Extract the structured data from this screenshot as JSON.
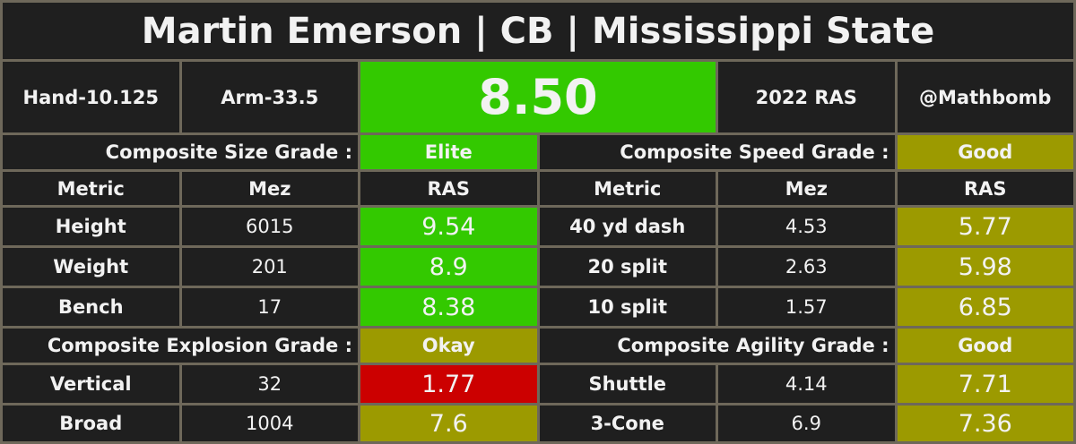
{
  "header": {
    "title": "Martin Emerson | CB | Mississippi State",
    "hand": "Hand-10.125",
    "arm": "Arm-33.5",
    "ras": "8.50",
    "year": "2022 RAS",
    "handle": "@Mathbomb"
  },
  "grades": {
    "size": {
      "label": "Composite Size Grade :",
      "value": "Elite"
    },
    "speed": {
      "label": "Composite Speed Grade :",
      "value": "Good"
    },
    "explosion": {
      "label": "Composite Explosion Grade :",
      "value": "Okay"
    },
    "agility": {
      "label": "Composite Agility Grade :",
      "value": "Good"
    }
  },
  "columns": [
    "Metric",
    "Mez",
    "RAS"
  ],
  "left": [
    [
      "Height",
      "6015",
      "9.54"
    ],
    [
      "Weight",
      "201",
      "8.9"
    ],
    [
      "Bench",
      "17",
      "8.38"
    ],
    [
      "Vertical",
      "32",
      "1.77"
    ],
    [
      "Broad",
      "1004",
      "7.6"
    ]
  ],
  "right": [
    [
      "40 yd dash",
      "4.53",
      "5.77"
    ],
    [
      "20 split",
      "2.63",
      "5.98"
    ],
    [
      "10 split",
      "1.57",
      "6.85"
    ],
    [
      "Shuttle",
      "4.14",
      "7.71"
    ],
    [
      "3-Cone",
      "6.9",
      "7.36"
    ]
  ]
}
